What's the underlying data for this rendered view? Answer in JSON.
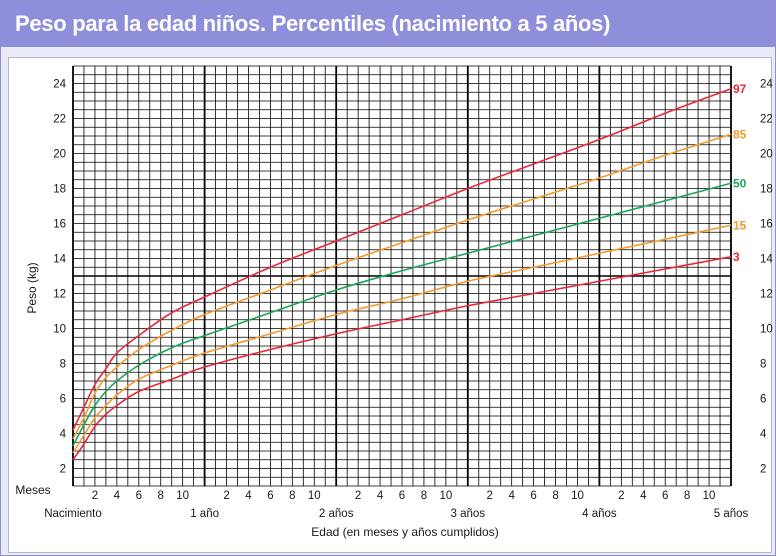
{
  "header": {
    "title": "Peso para la edad niños. Percentiles (nacimiento a 5 años)"
  },
  "colors": {
    "header_bg": "#8e8edb",
    "p3": "#e8283a",
    "p15": "#f39a2e",
    "p50": "#1aa65a",
    "p85": "#f39a2e",
    "p97": "#e8283a"
  },
  "chart_data": {
    "type": "line",
    "title": "Peso para la edad niños. Percentiles (nacimiento a 5 años)",
    "xlabel": "Edad (en meses y años cumplidos)",
    "ylabel": "Peso (kg)",
    "xlim": [
      0,
      60
    ],
    "ylim": [
      1,
      25
    ],
    "y_ticks": [
      2,
      4,
      6,
      8,
      10,
      12,
      14,
      16,
      18,
      20,
      22,
      24
    ],
    "month_label": "Meses",
    "month_ticks": [
      "2",
      "4",
      "6",
      "8",
      "10"
    ],
    "year_labels": [
      "Nacimiento",
      "1 año",
      "2 años",
      "3 años",
      "4 años",
      "5 años"
    ],
    "grid": true,
    "series": [
      {
        "name": "3",
        "color": "#e8283a",
        "x": [
          0,
          1,
          2,
          3,
          4,
          6,
          9,
          12,
          18,
          24,
          30,
          36,
          42,
          48,
          54,
          60
        ],
        "values": [
          2.5,
          3.4,
          4.4,
          5.1,
          5.6,
          6.4,
          7.1,
          7.8,
          8.8,
          9.7,
          10.5,
          11.3,
          12.0,
          12.7,
          13.4,
          14.1
        ]
      },
      {
        "name": "15",
        "color": "#f39a2e",
        "x": [
          0,
          1,
          2,
          3,
          4,
          6,
          9,
          12,
          18,
          24,
          30,
          36,
          42,
          48,
          54,
          60
        ],
        "values": [
          2.9,
          3.9,
          4.9,
          5.6,
          6.2,
          7.1,
          7.9,
          8.6,
          9.7,
          10.8,
          11.7,
          12.7,
          13.5,
          14.3,
          15.1,
          15.9
        ]
      },
      {
        "name": "50",
        "color": "#1aa65a",
        "x": [
          0,
          1,
          2,
          3,
          4,
          6,
          9,
          12,
          18,
          24,
          30,
          36,
          42,
          48,
          54,
          60
        ],
        "values": [
          3.3,
          4.5,
          5.6,
          6.4,
          7.0,
          7.9,
          8.9,
          9.6,
          10.9,
          12.2,
          13.3,
          14.3,
          15.3,
          16.3,
          17.3,
          18.3
        ]
      },
      {
        "name": "85",
        "color": "#f39a2e",
        "x": [
          0,
          1,
          2,
          3,
          4,
          6,
          9,
          12,
          18,
          24,
          30,
          36,
          42,
          48,
          54,
          60
        ],
        "values": [
          3.7,
          4.9,
          6.3,
          7.2,
          7.8,
          8.8,
          9.9,
          10.8,
          12.2,
          13.6,
          14.9,
          16.2,
          17.4,
          18.6,
          19.9,
          21.1
        ]
      },
      {
        "name": "97",
        "color": "#e8283a",
        "x": [
          0,
          1,
          2,
          3,
          4,
          6,
          9,
          12,
          18,
          24,
          30,
          36,
          42,
          48,
          54,
          60
        ],
        "values": [
          4.2,
          5.5,
          6.8,
          7.7,
          8.6,
          9.6,
          10.9,
          11.8,
          13.5,
          15.0,
          16.5,
          18.0,
          19.4,
          20.8,
          22.3,
          23.7
        ]
      }
    ]
  }
}
